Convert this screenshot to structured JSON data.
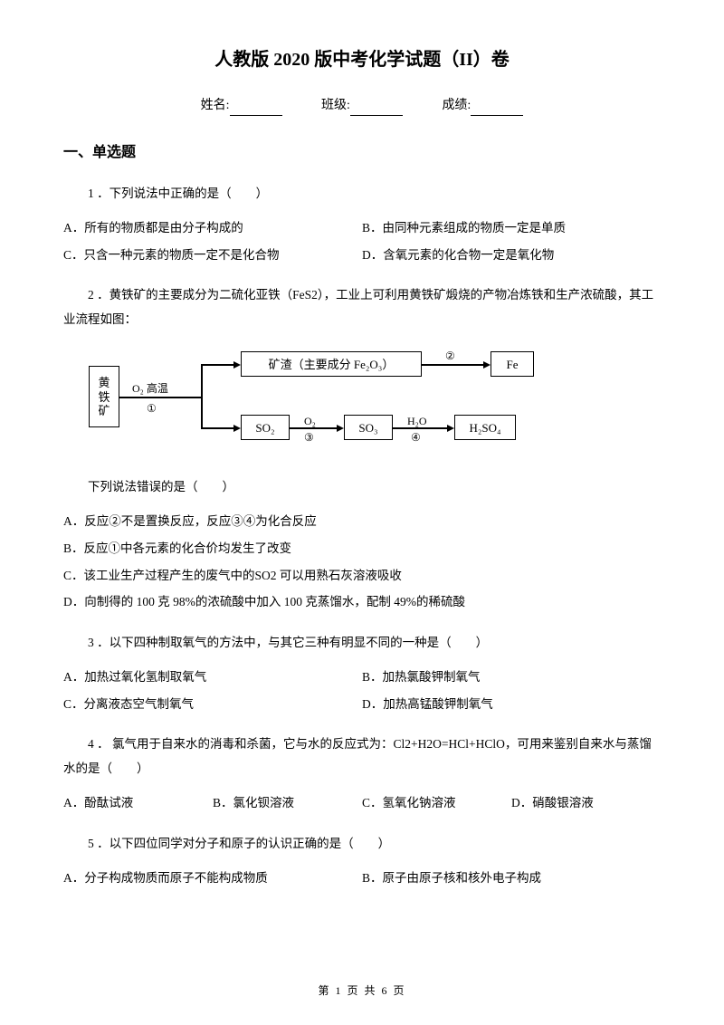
{
  "title": "人教版 2020 版中考化学试题（II）卷",
  "info": {
    "name_label": "姓名:",
    "class_label": "班级:",
    "score_label": "成绩:"
  },
  "section1": "一、单选题",
  "q1": {
    "text": "1 ．下列说法中正确的是（　　）",
    "A": "A．所有的物质都是由分子构成的",
    "B": "B．由同种元素组成的物质一定是单质",
    "C": "C．只含一种元素的物质一定不是化合物",
    "D": "D．含氧元素的化合物一定是氧化物"
  },
  "q2": {
    "text": "2 ．黄铁矿的主要成分为二硫化亚铁（FeS2），工业上可利用黄铁矿煅烧的产物冶炼铁和生产浓硫酸，其工业流程如图：",
    "diagram": {
      "box_pyrite": "黄\n铁\n矿",
      "box_slag": "矿渣（主要成分 Fe₂O₃）",
      "box_so2": "SO₂",
      "box_so3": "SO₃",
      "box_fe": "Fe",
      "box_h2so4": "H₂SO₄",
      "lbl_o2_hightemp": "O₂ 高温",
      "lbl_1": "①",
      "lbl_2": "②",
      "lbl_o2": "O₂",
      "lbl_3": "③",
      "lbl_h2o": "H₂O",
      "lbl_4": "④"
    },
    "sub": "下列说法错误的是（　　）",
    "A": "A．反应②不是置换反应，反应③④为化合反应",
    "B": "B．反应①中各元素的化合价均发生了改变",
    "C": "C．该工业生产过程产生的废气中的SO2 可以用熟石灰溶液吸收",
    "D": "D．向制得的 100 克 98%的浓硫酸中加入 100 克蒸馏水，配制 49%的稀硫酸"
  },
  "q3": {
    "text": "3 ．以下四种制取氧气的方法中，与其它三种有明显不同的一种是（　　）",
    "A": "A．加热过氧化氢制取氧气",
    "B": "B．加热氯酸钾制氧气",
    "C": "C．分离液态空气制氧气",
    "D": "D．加热高锰酸钾制氧气"
  },
  "q4": {
    "text": "4 ． 氯气用于自来水的消毒和杀菌，它与水的反应式为：Cl2+H2O=HCl+HClO，可用来鉴别自来水与蒸馏水的是（　　）",
    "A": "A．酚酞试液",
    "B": "B．氯化钡溶液",
    "C": "C．氢氧化钠溶液",
    "D": "D．硝酸银溶液"
  },
  "q5": {
    "text": "5 ．以下四位同学对分子和原子的认识正确的是（　　）",
    "A": "A．分子构成物质而原子不能构成物质",
    "B": "B．原子由原子核和核外电子构成"
  },
  "footer": "第 1 页 共 6 页"
}
